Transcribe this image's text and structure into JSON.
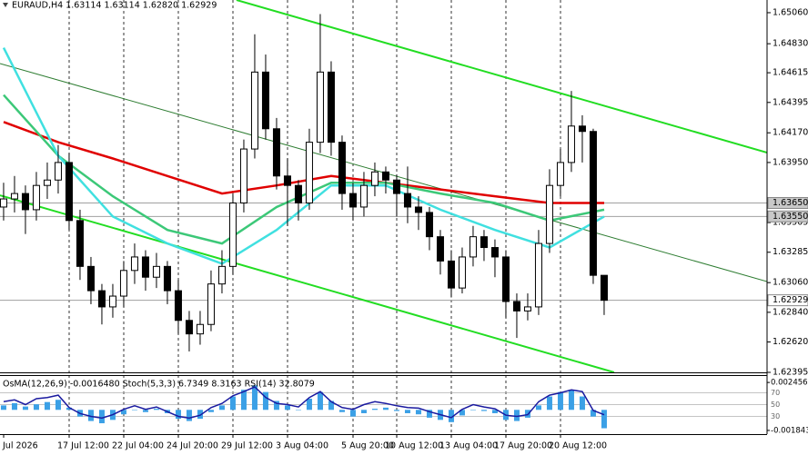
{
  "chart_data": {
    "type": "candlestick",
    "title": "EURAUD,H4  1.63114 1.63114 1.62820 1.62929",
    "candles": {
      "open": [
        1.6362,
        1.6368,
        1.6372,
        1.636,
        1.6378,
        1.6382,
        1.6395,
        1.6352,
        1.6318,
        1.63,
        1.6288,
        1.6296,
        1.6315,
        1.6325,
        1.631,
        1.6318,
        1.63,
        1.6278,
        1.6268,
        1.6275,
        1.6305,
        1.6318,
        1.6365,
        1.6405,
        1.6462,
        1.642,
        1.6385,
        1.6378,
        1.6365,
        1.641,
        1.6462,
        1.641,
        1.6372,
        1.6362,
        1.6378,
        1.6388,
        1.6382,
        1.6372,
        1.6362,
        1.6358,
        1.634,
        1.6322,
        1.6302,
        1.6325,
        1.634,
        1.6332,
        1.6325,
        1.6292,
        1.6285,
        1.6288,
        1.6335,
        1.6378,
        1.6395,
        1.6422,
        1.6418,
        1.63114
      ],
      "high": [
        1.638,
        1.6385,
        1.6378,
        1.6388,
        1.6395,
        1.6408,
        1.6402,
        1.636,
        1.6325,
        1.6305,
        1.6305,
        1.6322,
        1.6335,
        1.633,
        1.6328,
        1.6322,
        1.6308,
        1.6285,
        1.6285,
        1.6315,
        1.633,
        1.6372,
        1.6412,
        1.649,
        1.6475,
        1.6428,
        1.6398,
        1.6382,
        1.642,
        1.6505,
        1.647,
        1.6415,
        1.638,
        1.6388,
        1.6395,
        1.6392,
        1.6386,
        1.6392,
        1.637,
        1.6362,
        1.6345,
        1.633,
        1.6332,
        1.6348,
        1.6345,
        1.6338,
        1.633,
        1.6298,
        1.6298,
        1.6345,
        1.639,
        1.6405,
        1.6448,
        1.643,
        1.642,
        1.63114
      ],
      "low": [
        1.6352,
        1.6358,
        1.6342,
        1.6352,
        1.6368,
        1.6372,
        1.6345,
        1.6308,
        1.629,
        1.6275,
        1.628,
        1.6288,
        1.6305,
        1.63,
        1.6302,
        1.629,
        1.6268,
        1.6255,
        1.626,
        1.627,
        1.6298,
        1.6312,
        1.6358,
        1.6398,
        1.6412,
        1.6375,
        1.6348,
        1.6352,
        1.636,
        1.6402,
        1.64,
        1.636,
        1.6352,
        1.6355,
        1.637,
        1.6372,
        1.6355,
        1.635,
        1.6345,
        1.633,
        1.6312,
        1.6295,
        1.6298,
        1.6318,
        1.6322,
        1.631,
        1.628,
        1.6265,
        1.6278,
        1.6282,
        1.6328,
        1.637,
        1.6388,
        1.6395,
        1.6305,
        1.6282
      ],
      "close": [
        1.6368,
        1.6372,
        1.636,
        1.6378,
        1.6382,
        1.6395,
        1.6352,
        1.6318,
        1.63,
        1.6288,
        1.6296,
        1.6315,
        1.6325,
        1.631,
        1.6318,
        1.63,
        1.6278,
        1.6268,
        1.6275,
        1.6305,
        1.6318,
        1.6365,
        1.6405,
        1.6462,
        1.642,
        1.6385,
        1.6378,
        1.6365,
        1.641,
        1.6462,
        1.641,
        1.6372,
        1.6362,
        1.6378,
        1.6388,
        1.6382,
        1.6372,
        1.6362,
        1.6358,
        1.634,
        1.6322,
        1.6302,
        1.6325,
        1.634,
        1.6332,
        1.6325,
        1.6292,
        1.6285,
        1.6288,
        1.6335,
        1.6378,
        1.6395,
        1.6422,
        1.6418,
        1.63114,
        1.62929
      ]
    },
    "up_color": "#ffffff",
    "down_color": "#000000",
    "xlim": [
      -0.33,
      69.92
    ],
    "ylim": [
      1.62395,
      1.65154
    ],
    "yticks": [
      {
        "value": 1.6506,
        "label": "1.65060"
      },
      {
        "value": 1.6483,
        "label": "1.64830"
      },
      1.64615,
      1.64395,
      {
        "value": 1.6417,
        "label": "1.64170"
      },
      {
        "value": 1.6395,
        "label": "1.63950"
      },
      1.63505,
      1.63285,
      {
        "value": 1.6306,
        "label": "1.63060"
      },
      {
        "value": 1.6284,
        "label": "1.62840"
      },
      {
        "value": 1.6262,
        "label": "1.62620"
      },
      1.62395
    ],
    "xticks": [
      {
        "value": 0,
        "label": "Jul 2026"
      },
      {
        "value": 6,
        "label": "17 Jul 12:00"
      },
      {
        "value": 11,
        "label": "22 Jul 04:00"
      },
      {
        "value": 16,
        "label": "24 Jul 20:00"
      },
      {
        "value": 21,
        "label": "29 Jul 12:00"
      },
      {
        "value": 26,
        "label": "3 Aug 04:00"
      },
      {
        "value": 32,
        "label": "5 Aug 20:00"
      },
      {
        "value": 36,
        "label": "10 Aug 12:00"
      },
      {
        "value": 41,
        "label": "13 Aug 04:00"
      },
      {
        "value": 46,
        "label": "17 Aug 20:00"
      },
      {
        "value": 51,
        "label": "20 Aug 12:00"
      }
    ],
    "grid": true,
    "price_markers": [
      {
        "value": 1.6365,
        "label": "1.63650",
        "color": "#c8c8c8"
      },
      {
        "value": 1.6355,
        "label": "1.63550",
        "color": "#c8c8c8"
      },
      {
        "value": 1.62929,
        "label": "1.62929",
        "color": "#ffffff"
      }
    ],
    "lines": [
      {
        "color": "#e00000",
        "x": [
          0,
          5,
          10,
          15,
          20,
          25,
          30,
          35,
          40,
          45,
          50,
          55
        ],
        "values": [
          1.6425,
          1.641,
          1.6398,
          1.6385,
          1.6372,
          1.6378,
          1.6385,
          1.638,
          1.6375,
          1.637,
          1.6365,
          1.6365
        ]
      },
      {
        "color": "#3cc878",
        "x": [
          0,
          5,
          10,
          15,
          20,
          25,
          30,
          35,
          40,
          45,
          50,
          55
        ],
        "values": [
          1.6445,
          1.64,
          1.637,
          1.6345,
          1.6335,
          1.6362,
          1.638,
          1.638,
          1.6372,
          1.6365,
          1.6352,
          1.636
        ]
      },
      {
        "color": "#40e0e0",
        "x": [
          0,
          5,
          10,
          15,
          20,
          25,
          30,
          35,
          40,
          45,
          50,
          55
        ],
        "values": [
          1.648,
          1.64,
          1.6355,
          1.6335,
          1.632,
          1.6345,
          1.6378,
          1.6378,
          1.636,
          1.6345,
          1.6332,
          1.6355
        ]
      }
    ],
    "trend_lines": [
      {
        "color": "#22dd22",
        "x": [
          21.33,
          69.92
        ],
        "values": [
          1.65154,
          1.64023
        ]
      },
      {
        "color": "#22dd22",
        "x": [
          -0.33,
          55.92
        ],
        "values": [
          1.63707,
          1.62395
        ]
      },
      {
        "color": "#2e7d32",
        "x": [
          -0.33,
          69.92
        ],
        "values": [
          1.64683,
          1.63068
        ]
      }
    ],
    "indicator": {
      "title": "OsMA(12,26,9) -0.0016480  Stoch(5,3,3) 6.7349 8.3163  RSI(14) 32.8079",
      "type": "bar",
      "color": "#3ba0e6",
      "values": [
        0.0004,
        0.0006,
        0.0003,
        0.0005,
        0.0007,
        0.0009,
        0.0002,
        -0.0006,
        -0.001,
        -0.0012,
        -0.0009,
        -0.0004,
        0,
        -0.0002,
        0.0001,
        -0.0003,
        -0.0008,
        -0.001,
        -0.0008,
        -0.0002,
        0.0004,
        0.0012,
        0.0018,
        0.0022,
        0.0016,
        0.0008,
        0.0004,
        0,
        0.001,
        0.0016,
        0.0008,
        -0.0002,
        -0.0006,
        -0.0003,
        0.0001,
        0.0002,
        -0.0001,
        -0.0003,
        -0.0004,
        -0.0007,
        -0.0009,
        -0.0011,
        -0.0005,
        0,
        -0.0001,
        -0.0003,
        -0.0009,
        -0.001,
        -0.0007,
        0.0004,
        0.0012,
        0.0016,
        0.0018,
        0.0012,
        -0.0006,
        -0.001648
      ],
      "ylim": [
        -0.002174,
        0.003117
      ],
      "yticks": [
        0.002456,
        -0.001843
      ],
      "rsi": {
        "color": "#1a1aa0",
        "values": [
          55,
          58,
          50,
          60,
          62,
          66,
          45,
          35,
          30,
          27,
          33,
          42,
          48,
          42,
          46,
          38,
          30,
          27,
          32,
          45,
          52,
          65,
          72,
          80,
          62,
          52,
          50,
          46,
          62,
          72,
          55,
          45,
          42,
          50,
          55,
          52,
          48,
          45,
          44,
          38,
          33,
          28,
          42,
          50,
          46,
          43,
          32,
          30,
          33,
          55,
          66,
          70,
          75,
          72,
          40,
          32.8079
        ],
        "ylim": [
          0,
          100
        ],
        "levels": [
          70,
          50,
          30
        ]
      }
    }
  }
}
